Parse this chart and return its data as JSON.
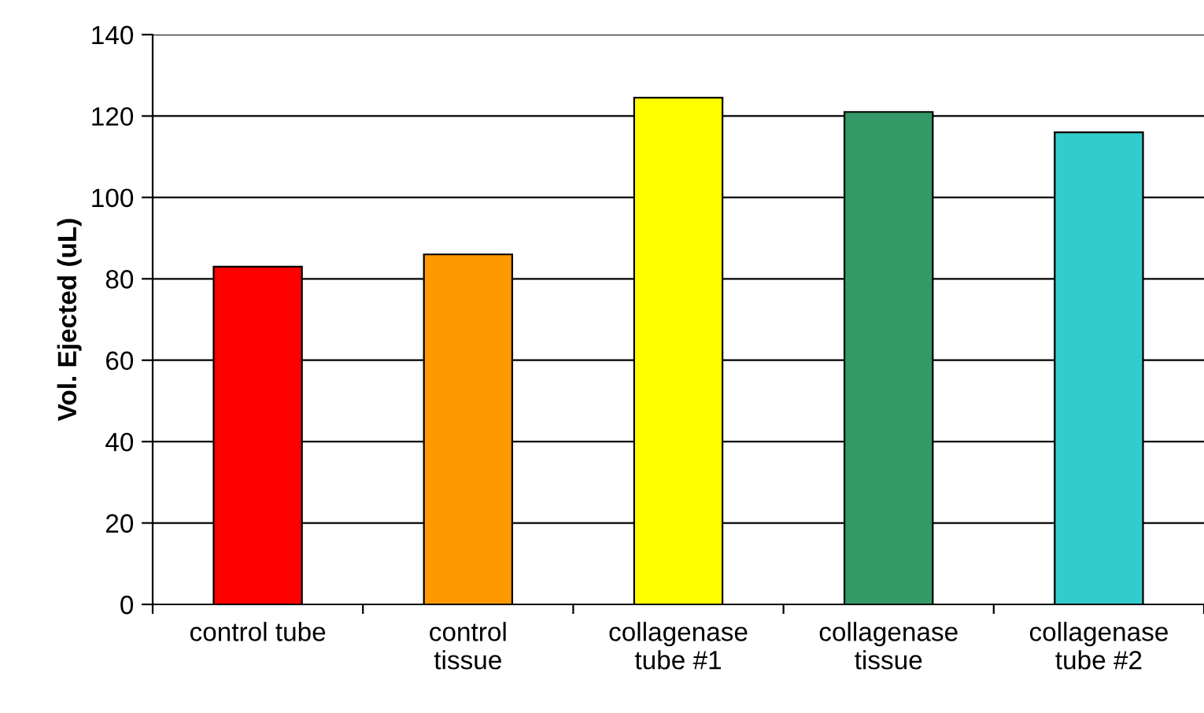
{
  "chart_data": {
    "type": "bar",
    "ylabel": "Vol. Ejected (uL)",
    "categories": [
      "control tube",
      "control\ntissue",
      "collagenase\ntube #1",
      "collagenase\ntissue",
      "collagenase\ntube #2"
    ],
    "values": [
      83,
      86,
      124.5,
      121,
      116
    ],
    "colors": [
      "#ff0000",
      "#ff9900",
      "#ffff00",
      "#339966",
      "#33cccc"
    ],
    "ylim": [
      0,
      140
    ],
    "yticks": [
      0,
      20,
      40,
      60,
      80,
      100,
      120,
      140
    ],
    "grid": "y"
  }
}
